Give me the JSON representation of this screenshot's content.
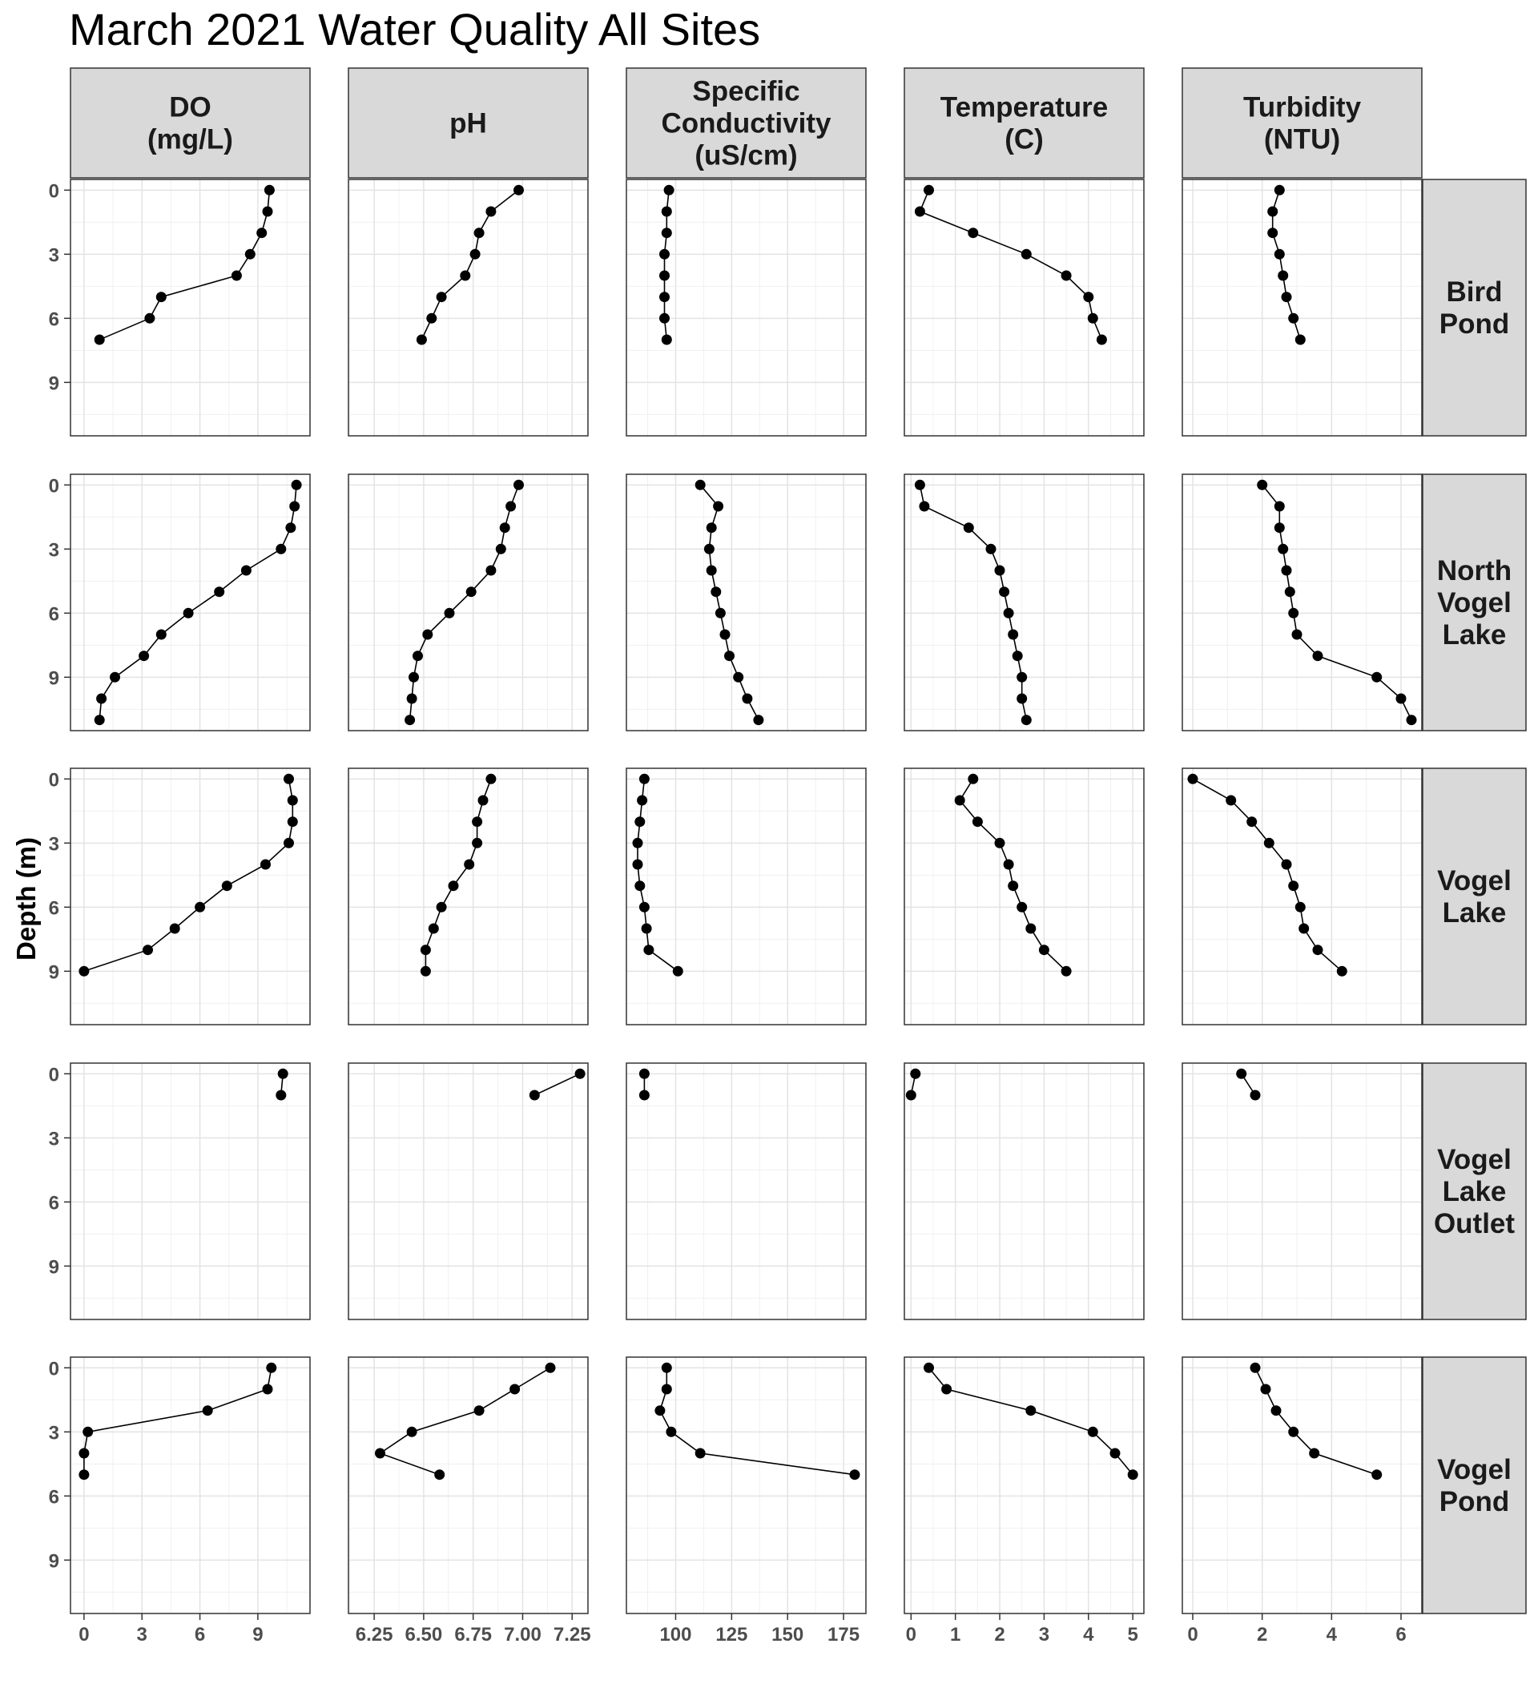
{
  "chart_data": {
    "type": "line",
    "title": "March 2021 Water Quality All Sites",
    "ylabel": "Depth (m)",
    "xlabel": "",
    "y_reversed": true,
    "ylim": [
      11.5,
      -0.5
    ],
    "yticks": [
      0,
      3,
      6,
      9
    ],
    "grid": true,
    "legend": "none",
    "columns": [
      {
        "key": "do",
        "label": "DO\n(mg/L)",
        "xlim": [
          -0.7,
          11.7
        ],
        "xticks": [
          0,
          3,
          6,
          9
        ]
      },
      {
        "key": "ph",
        "label": "pH",
        "xlim": [
          6.12,
          7.33
        ],
        "xticks": [
          6.25,
          6.5,
          6.75,
          7.0,
          7.25
        ],
        "xticklabels": [
          "6.25",
          "6.50",
          "6.75",
          "7.00",
          "7.25"
        ]
      },
      {
        "key": "cond",
        "label": "Specific\nConductivity\n(uS/cm)",
        "xlim": [
          78,
          185
        ],
        "xticks": [
          100,
          125,
          150,
          175
        ]
      },
      {
        "key": "temp",
        "label": "Temperature\n(C)",
        "xlim": [
          -0.15,
          5.25
        ],
        "xticks": [
          0,
          1,
          2,
          3,
          4,
          5
        ]
      },
      {
        "key": "turb",
        "label": "Turbidity\n(NTU)",
        "xlim": [
          -0.3,
          6.6
        ],
        "xticks": [
          0,
          2,
          4,
          6
        ]
      }
    ],
    "rows": [
      {
        "site": "Bird\nPond",
        "depth": [
          0,
          1,
          2,
          3,
          4,
          5,
          6,
          7
        ],
        "do": [
          9.6,
          9.5,
          9.2,
          8.6,
          7.9,
          4.0,
          3.4,
          0.8
        ],
        "ph": [
          6.98,
          6.84,
          6.78,
          6.76,
          6.71,
          6.59,
          6.54,
          6.49
        ],
        "cond": [
          97,
          96,
          96,
          95,
          95,
          95,
          95,
          96
        ],
        "temp": [
          0.4,
          0.2,
          1.4,
          2.6,
          3.5,
          4.0,
          4.1,
          4.3
        ],
        "turb": [
          2.5,
          2.3,
          2.3,
          2.5,
          2.6,
          2.7,
          2.9,
          3.1
        ]
      },
      {
        "site": "North\nVogel\nLake",
        "depth": [
          0,
          1,
          2,
          3,
          4,
          5,
          6,
          7,
          8,
          9,
          10,
          11
        ],
        "do": [
          11.0,
          10.9,
          10.7,
          10.2,
          8.4,
          7.0,
          5.4,
          4.0,
          3.1,
          1.6,
          0.9,
          0.8
        ],
        "ph": [
          6.98,
          6.94,
          6.91,
          6.89,
          6.84,
          6.74,
          6.63,
          6.52,
          6.47,
          6.45,
          6.44,
          6.43
        ],
        "cond": [
          111,
          119,
          116,
          115,
          116,
          118,
          120,
          122,
          124,
          128,
          132,
          137
        ],
        "temp": [
          0.2,
          0.3,
          1.3,
          1.8,
          2.0,
          2.1,
          2.2,
          2.3,
          2.4,
          2.5,
          2.5,
          2.6
        ],
        "turb": [
          2.0,
          2.5,
          2.5,
          2.6,
          2.7,
          2.8,
          2.9,
          3.0,
          3.6,
          5.3,
          6.0,
          6.3
        ]
      },
      {
        "site": "Vogel\nLake",
        "depth": [
          0,
          1,
          2,
          3,
          4,
          5,
          6,
          7,
          8,
          9
        ],
        "do": [
          10.6,
          10.8,
          10.8,
          10.6,
          9.4,
          7.4,
          6.0,
          4.7,
          3.3,
          0.0
        ],
        "ph": [
          6.84,
          6.8,
          6.77,
          6.77,
          6.73,
          6.65,
          6.59,
          6.55,
          6.51,
          6.51
        ],
        "cond": [
          86,
          85,
          84,
          83,
          83,
          84,
          86,
          87,
          88,
          101
        ],
        "temp": [
          1.4,
          1.1,
          1.5,
          2.0,
          2.2,
          2.3,
          2.5,
          2.7,
          3.0,
          3.5
        ],
        "turb": [
          0.0,
          1.1,
          1.7,
          2.2,
          2.7,
          2.9,
          3.1,
          3.2,
          3.6,
          4.3
        ]
      },
      {
        "site": "Vogel\nLake\nOutlet",
        "depth": [
          0,
          1
        ],
        "do": [
          10.3,
          10.2
        ],
        "ph": [
          7.29,
          7.06
        ],
        "cond": [
          86,
          86
        ],
        "temp": [
          0.1,
          0.0
        ],
        "turb": [
          1.4,
          1.8
        ]
      },
      {
        "site": "Vogel\nPond",
        "depth": [
          0,
          1,
          2,
          3,
          4,
          5
        ],
        "do": [
          9.7,
          9.5,
          6.4,
          0.2,
          0.0,
          0.0
        ],
        "ph": [
          7.14,
          6.96,
          6.78,
          6.44,
          6.28,
          6.58
        ],
        "cond": [
          96,
          96,
          93,
          98,
          111,
          180
        ],
        "temp": [
          0.4,
          0.8,
          2.7,
          4.1,
          4.6,
          5.0
        ],
        "turb": [
          1.8,
          2.1,
          2.4,
          2.9,
          3.5,
          5.3
        ]
      }
    ]
  }
}
